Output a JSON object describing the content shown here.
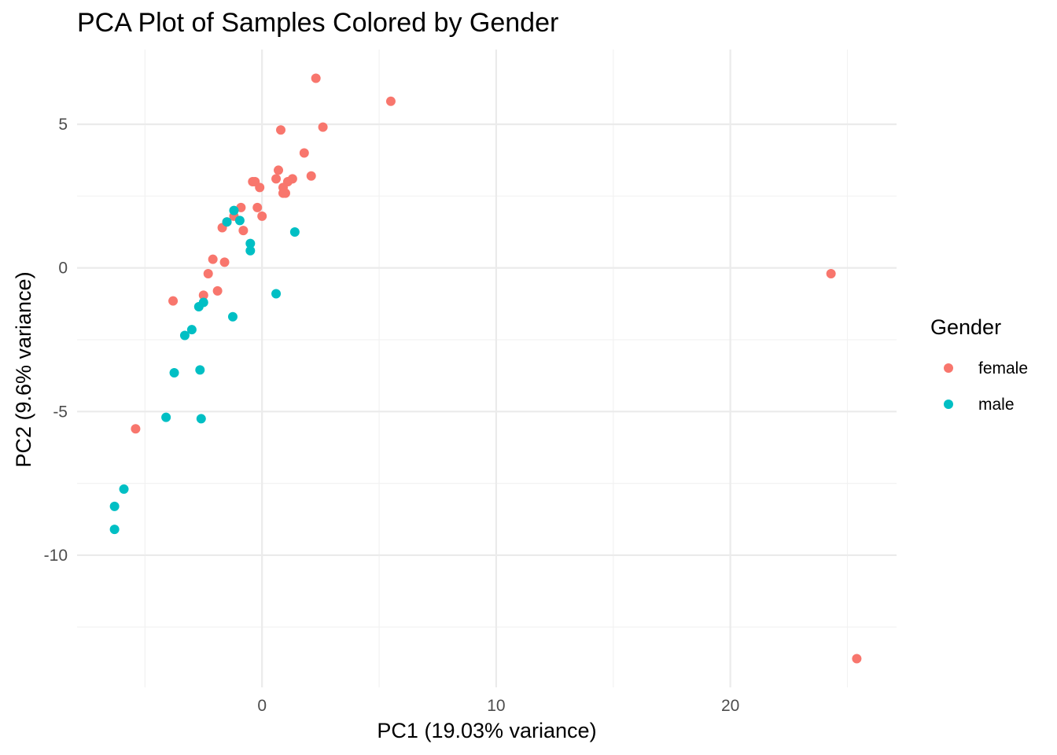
{
  "chart_data": {
    "type": "scatter",
    "title": "PCA Plot of Samples Colored by Gender",
    "xlabel": "PC1 (19.03% variance)",
    "ylabel": "PC2 (9.6% variance)",
    "xlim": [
      -7.9,
      27.1
    ],
    "ylim": [
      -14.6,
      7.6
    ],
    "x_ticks": [
      0,
      10,
      20
    ],
    "x_tick_labels": [
      "0",
      "10",
      "20"
    ],
    "x_minor_ticks": [
      -5,
      5,
      15,
      25
    ],
    "y_ticks": [
      -10,
      -5,
      0,
      5
    ],
    "y_tick_labels": [
      "-10",
      "-5",
      "0",
      "5"
    ],
    "y_minor_ticks": [
      -12.5,
      -7.5,
      -2.5,
      2.5
    ],
    "grid": true,
    "theme": "minimal",
    "legend": {
      "title": "Gender",
      "position": "right",
      "entries": [
        {
          "label": "female",
          "color": "#F8766D"
        },
        {
          "label": "male",
          "color": "#00BFC4"
        }
      ]
    },
    "series": [
      {
        "name": "female",
        "color": "#F8766D",
        "points": [
          {
            "x": 2.3,
            "y": 6.6
          },
          {
            "x": 5.5,
            "y": 5.8
          },
          {
            "x": 0.8,
            "y": 4.8
          },
          {
            "x": 2.6,
            "y": 4.9
          },
          {
            "x": 1.8,
            "y": 4.0
          },
          {
            "x": 0.7,
            "y": 3.4
          },
          {
            "x": 2.1,
            "y": 3.2
          },
          {
            "x": 0.6,
            "y": 3.1
          },
          {
            "x": 1.3,
            "y": 3.1
          },
          {
            "x": 1.1,
            "y": 3.0
          },
          {
            "x": -0.4,
            "y": 3.0
          },
          {
            "x": -0.3,
            "y": 3.0
          },
          {
            "x": 0.9,
            "y": 2.8
          },
          {
            "x": -0.1,
            "y": 2.8
          },
          {
            "x": 1.0,
            "y": 2.6
          },
          {
            "x": 0.9,
            "y": 2.6
          },
          {
            "x": -0.2,
            "y": 2.1
          },
          {
            "x": -0.9,
            "y": 2.1
          },
          {
            "x": 0.0,
            "y": 1.8
          },
          {
            "x": -1.2,
            "y": 1.8
          },
          {
            "x": -1.5,
            "y": 1.6
          },
          {
            "x": -1.7,
            "y": 1.4
          },
          {
            "x": -0.8,
            "y": 1.3
          },
          {
            "x": -2.1,
            "y": 0.3
          },
          {
            "x": -1.6,
            "y": 0.2
          },
          {
            "x": -2.3,
            "y": -0.2
          },
          {
            "x": -1.9,
            "y": -0.8
          },
          {
            "x": -2.5,
            "y": -0.95
          },
          {
            "x": -3.8,
            "y": -1.15
          },
          {
            "x": -5.4,
            "y": -5.6
          },
          {
            "x": 24.3,
            "y": -0.2
          },
          {
            "x": 25.4,
            "y": -13.6
          }
        ]
      },
      {
        "name": "male",
        "color": "#00BFC4",
        "points": [
          {
            "x": -1.2,
            "y": 2.0
          },
          {
            "x": -1.5,
            "y": 1.6
          },
          {
            "x": -0.95,
            "y": 1.65
          },
          {
            "x": 1.4,
            "y": 1.25
          },
          {
            "x": -0.5,
            "y": 0.85
          },
          {
            "x": -0.5,
            "y": 0.6
          },
          {
            "x": 0.6,
            "y": -0.9
          },
          {
            "x": -2.5,
            "y": -1.2
          },
          {
            "x": -2.7,
            "y": -1.35
          },
          {
            "x": -1.25,
            "y": -1.7
          },
          {
            "x": -3.0,
            "y": -2.15
          },
          {
            "x": -3.3,
            "y": -2.35
          },
          {
            "x": -3.75,
            "y": -3.65
          },
          {
            "x": -2.65,
            "y": -3.55
          },
          {
            "x": -4.1,
            "y": -5.2
          },
          {
            "x": -2.6,
            "y": -5.25
          },
          {
            "x": -5.9,
            "y": -7.7
          },
          {
            "x": -6.3,
            "y": -8.3
          },
          {
            "x": -6.3,
            "y": -9.1
          }
        ]
      }
    ]
  }
}
